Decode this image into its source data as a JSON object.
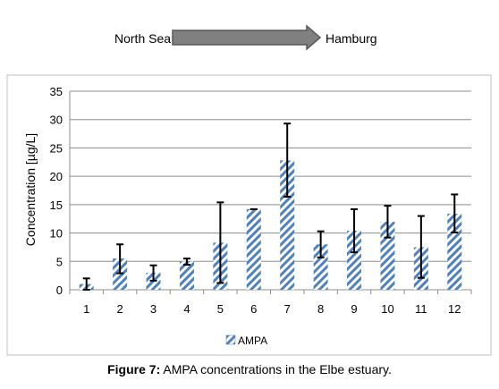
{
  "header": {
    "from_label": "North Sea",
    "to_label": "Hamburg"
  },
  "caption": {
    "label": "Figure 7:",
    "text": "AMPA concentrations in the Elbe estuary."
  },
  "chart_data": {
    "type": "bar",
    "categories": [
      "1",
      "2",
      "3",
      "4",
      "5",
      "6",
      "7",
      "8",
      "9",
      "10",
      "11",
      "12"
    ],
    "series": [
      {
        "name": "AMPA",
        "values": [
          1.0,
          5.5,
          3.0,
          5.0,
          8.3,
          14.2,
          22.8,
          8.0,
          10.4,
          12.0,
          7.5,
          13.4
        ],
        "error_low": [
          0.0,
          2.9,
          1.6,
          4.4,
          1.2,
          14.2,
          16.4,
          5.7,
          6.6,
          9.2,
          2.1,
          10.1
        ],
        "error_high": [
          2.0,
          8.0,
          4.3,
          5.5,
          15.4,
          14.2,
          29.3,
          10.3,
          14.2,
          14.8,
          13.0,
          16.8
        ]
      }
    ],
    "ylabel": "Concentration [µg/L]",
    "xlabel": "",
    "ylim": [
      0,
      35
    ],
    "yticks": [
      0,
      5,
      10,
      15,
      20,
      25,
      30,
      35
    ],
    "grid": true,
    "legend_position": "bottom",
    "colors": {
      "bar_stripe": "#4f81bd",
      "bar_background": "#ffffff",
      "grid": "#8c8c8c",
      "error_bar": "#000000",
      "arrow_fill": "#808080",
      "arrow_stroke": "#595959"
    }
  }
}
